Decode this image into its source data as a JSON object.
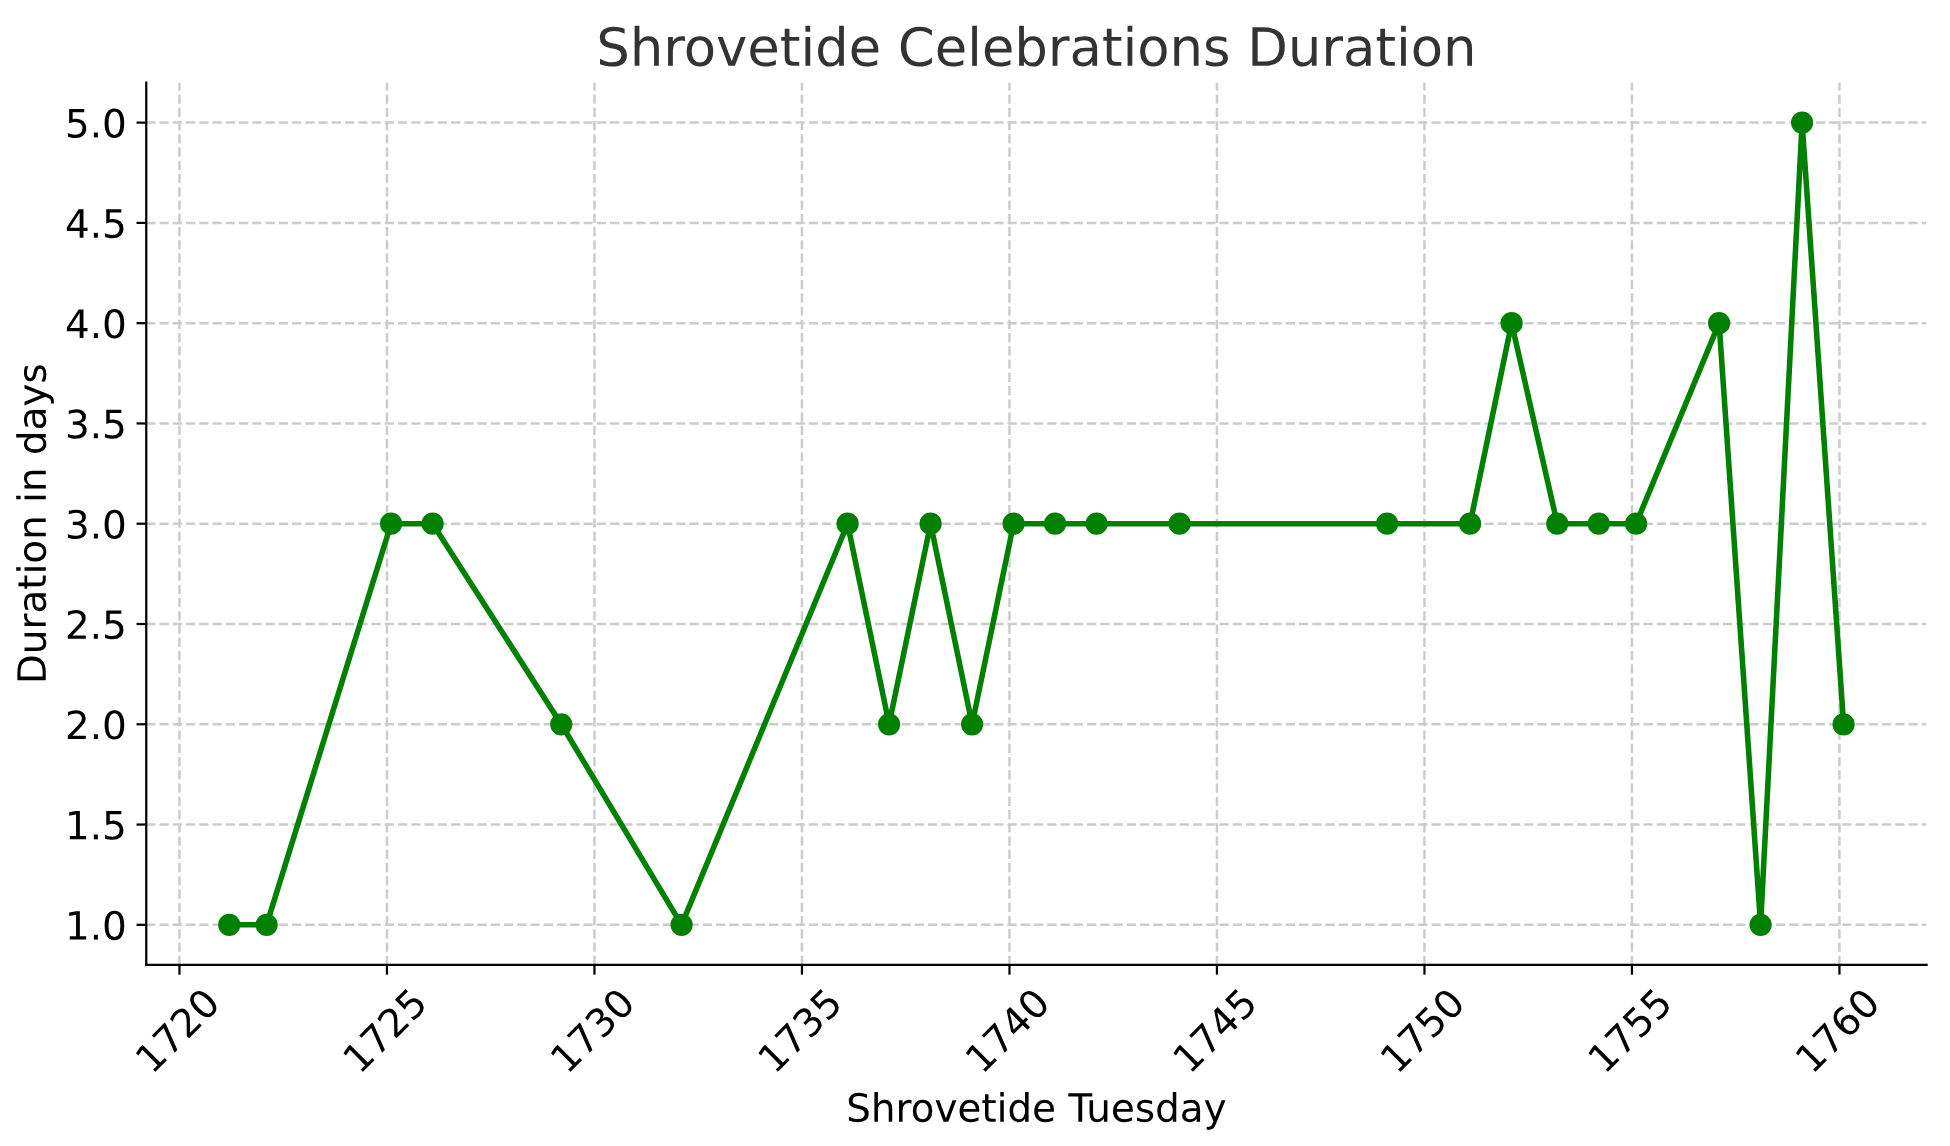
{
  "chart_data": {
    "type": "line",
    "title": "Shrovetide Celebrations Duration",
    "xlabel": "Shrovetide Tuesday",
    "ylabel": "Duration in days",
    "x": [
      1721.2,
      1722.1,
      1725.1,
      1726.1,
      1729.2,
      1732.1,
      1736.1,
      1737.1,
      1738.1,
      1739.1,
      1740.1,
      1741.1,
      1742.1,
      1744.1,
      1749.1,
      1751.1,
      1752.1,
      1753.2,
      1754.2,
      1755.1,
      1757.1,
      1758.1,
      1759.1,
      1760.1
    ],
    "series": [
      {
        "color": "#008000",
        "values": [
          1,
          1,
          3,
          3,
          2,
          1,
          3,
          2,
          3,
          2,
          3,
          3,
          3,
          3,
          3,
          3,
          4,
          3,
          3,
          3,
          4,
          1,
          5,
          2
        ]
      }
    ],
    "xlim": [
      1719.2,
      1762.1
    ],
    "xticks": [
      1720,
      1725,
      1730,
      1735,
      1740,
      1745,
      1750,
      1755,
      1760
    ],
    "ylim": [
      0.8,
      5.2
    ],
    "yticks": [
      {
        "value": 1,
        "label": "1.0"
      },
      {
        "value": 1.5,
        "label": "1.5"
      },
      {
        "value": 2,
        "label": "2.0"
      },
      {
        "value": 2.5,
        "label": "2.5"
      },
      {
        "value": 3,
        "label": "3.0"
      },
      {
        "value": 3.5,
        "label": "3.5"
      },
      {
        "value": 4,
        "label": "4.0"
      },
      {
        "value": 4.5,
        "label": "4.5"
      },
      {
        "value": 5,
        "label": "5.0"
      }
    ],
    "grid": true,
    "marker": "circle",
    "line_style": "solid",
    "legend": false
  }
}
